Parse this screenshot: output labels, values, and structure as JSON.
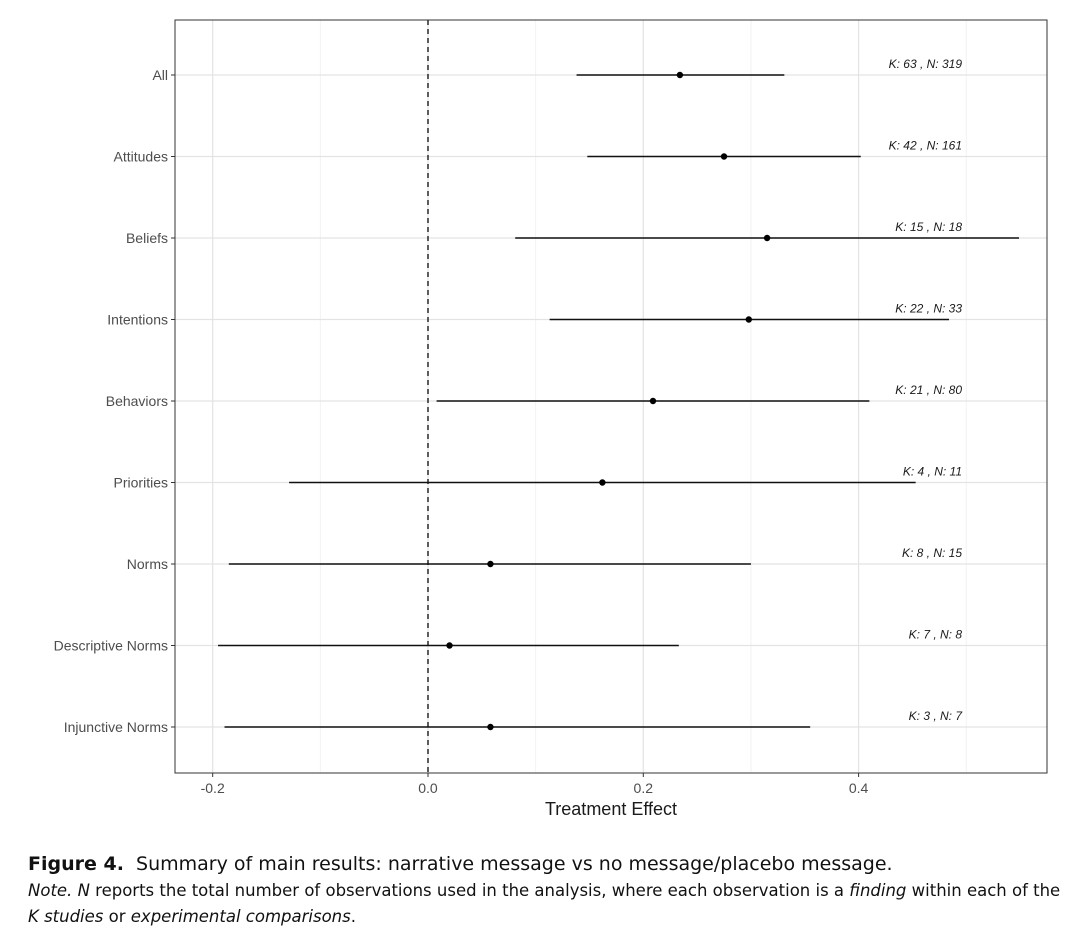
{
  "chart_data": {
    "type": "forest",
    "xlabel": "Treatment Effect",
    "xlim": [
      -0.235,
      0.575
    ],
    "xticks": [
      -0.2,
      0.0,
      0.2,
      0.4
    ],
    "xtick_labels": [
      "-0.2",
      "0.0",
      "0.2",
      "0.4"
    ],
    "reference_line": 0.0,
    "grid": true,
    "rows": [
      {
        "label": "All",
        "estimate": 0.234,
        "lower": 0.138,
        "upper": 0.331,
        "annotation": "K: 63 , N: 319"
      },
      {
        "label": "Attitudes",
        "estimate": 0.275,
        "lower": 0.148,
        "upper": 0.402,
        "annotation": "K: 42 , N: 161"
      },
      {
        "label": "Beliefs",
        "estimate": 0.315,
        "lower": 0.081,
        "upper": 0.549,
        "annotation": "K: 15 , N: 18"
      },
      {
        "label": "Intentions",
        "estimate": 0.298,
        "lower": 0.113,
        "upper": 0.484,
        "annotation": "K: 22 , N: 33"
      },
      {
        "label": "Behaviors",
        "estimate": 0.209,
        "lower": 0.008,
        "upper": 0.41,
        "annotation": "K: 21 , N: 80"
      },
      {
        "label": "Priorities",
        "estimate": 0.162,
        "lower": -0.129,
        "upper": 0.453,
        "annotation": "K: 4 , N: 11"
      },
      {
        "label": "Norms",
        "estimate": 0.058,
        "lower": -0.185,
        "upper": 0.3,
        "annotation": "K: 8 , N: 15"
      },
      {
        "label": "Descriptive Norms",
        "estimate": 0.02,
        "lower": -0.195,
        "upper": 0.233,
        "annotation": "K: 7 , N: 8"
      },
      {
        "label": "Injunctive Norms",
        "estimate": 0.058,
        "lower": -0.189,
        "upper": 0.355,
        "annotation": "K: 3 , N: 7"
      }
    ]
  },
  "caption": {
    "figure_label": "Figure 4.",
    "title": "Summary of main results: narrative message vs no message/placebo message.",
    "note_prefix": "Note.",
    "n_var": "N",
    "text1": " reports the total number of observations used in the analysis, where each observation is a ",
    "finding": "finding",
    "text2": " within each of the ",
    "k_studies": "K studies",
    "text3": " or ",
    "experimental": "experimental comparisons",
    "text4": "."
  }
}
